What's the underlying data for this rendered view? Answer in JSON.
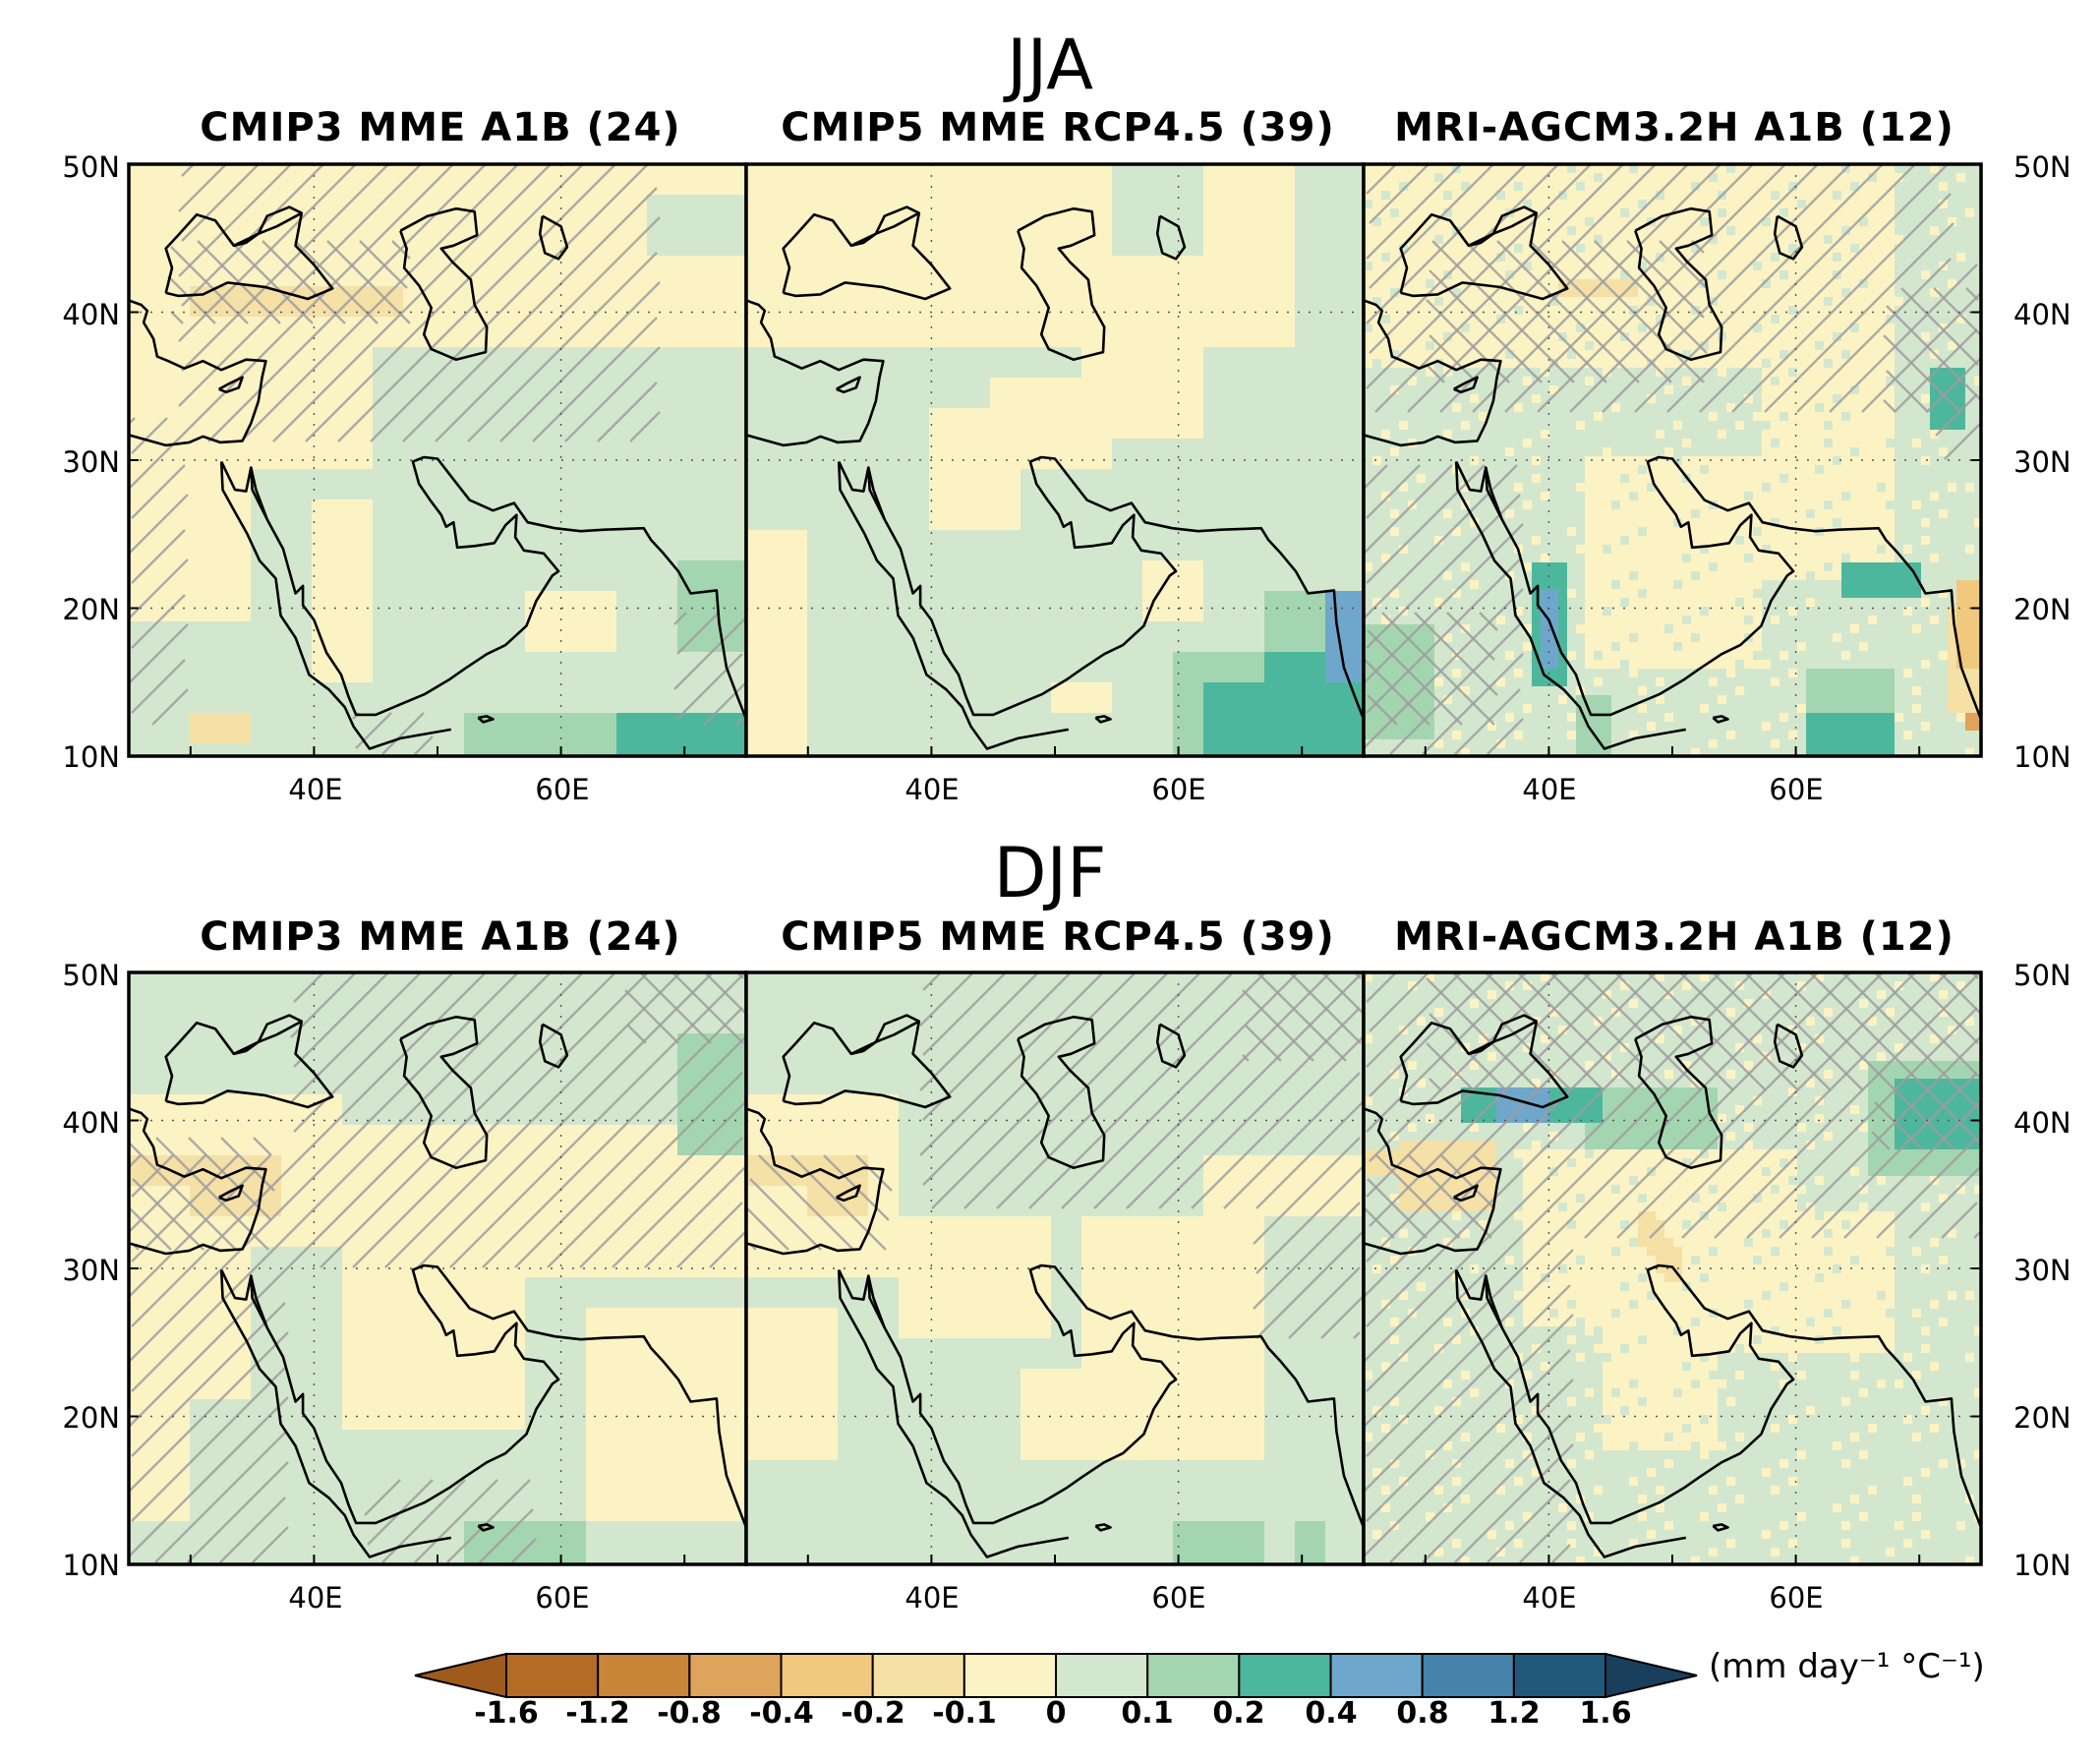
{
  "figure": {
    "rows": [
      {
        "season": "JJA",
        "panels": [
          {
            "title": "CMIP3 MME A1B (24)",
            "style": "coarse",
            "pattern": "jja_cmip3"
          },
          {
            "title": "CMIP5 MME RCP4.5 (39)",
            "style": "coarse",
            "pattern": "jja_cmip5"
          },
          {
            "title": "MRI-AGCM3.2H A1B (12)",
            "style": "fine",
            "pattern": "jja_mri"
          }
        ]
      },
      {
        "season": "DJF",
        "panels": [
          {
            "title": "CMIP3 MME A1B (24)",
            "style": "coarse",
            "pattern": "djf_cmip3"
          },
          {
            "title": "CMIP5 MME RCP4.5 (39)",
            "style": "coarse",
            "pattern": "djf_cmip5"
          },
          {
            "title": "MRI-AGCM3.2H A1B (12)",
            "style": "fine",
            "pattern": "djf_mri"
          }
        ]
      }
    ],
    "lat_labels": [
      "50N",
      "40N",
      "30N",
      "20N",
      "10N"
    ],
    "lon_labels": [
      "40E",
      "60E"
    ],
    "map_extent": {
      "lon": [
        25,
        75
      ],
      "lat": [
        10,
        50
      ]
    }
  },
  "colorbar": {
    "labels": [
      "-1.6",
      "-1.2",
      "-0.8",
      "-0.4",
      "-0.2",
      "-0.1",
      "0",
      "0.1",
      "0.2",
      "0.4",
      "0.8",
      "1.2",
      "1.6"
    ],
    "colors": [
      "#b46b26",
      "#c98639",
      "#dea45c",
      "#f0c97e",
      "#f5e0a6",
      "#fcf3c4",
      "#d3e7cf",
      "#a3d6b0",
      "#4db79d",
      "#6fa7cc",
      "#4683aa",
      "#21597d"
    ],
    "under_color": "#a05a1c",
    "over_color": "#1a3f5c",
    "unit_label": "(mm day⁻¹ °C⁻¹)"
  },
  "colors": {
    "hatch": "#9e9e9e",
    "coast": "#000000",
    "pale_yellow": "#fcf3c4",
    "light_green": "#d3e7cf"
  }
}
